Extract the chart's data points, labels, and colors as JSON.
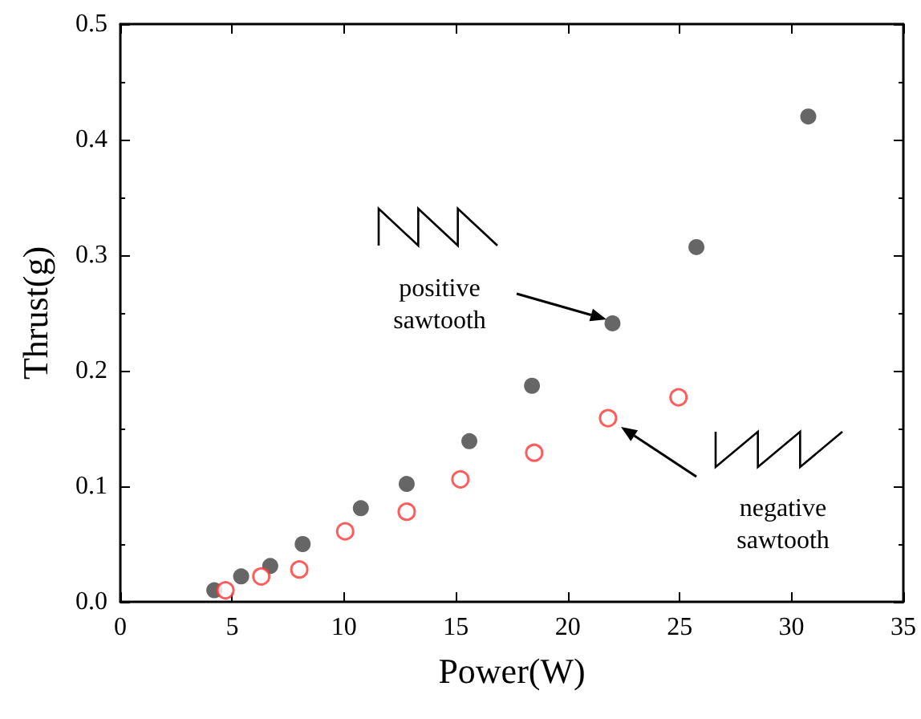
{
  "chart_data": {
    "type": "scatter",
    "xlabel": "Power(W)",
    "ylabel": "Thrust(g)",
    "xlim": [
      0,
      35
    ],
    "xticks": [
      0,
      5,
      10,
      15,
      20,
      25,
      30,
      35
    ],
    "ylim": [
      0,
      0.5
    ],
    "yticks": [
      {
        "value": 0,
        "label": "0.0"
      },
      {
        "value": 0.1,
        "label": "0.1"
      },
      {
        "value": 0.2,
        "label": "0.2"
      },
      {
        "value": 0.3,
        "label": "0.3"
      },
      {
        "value": 0.4,
        "label": "0.4"
      },
      {
        "value": 0.5,
        "label": "0.5"
      }
    ],
    "marker": "circle",
    "series": [
      {
        "color": "#404040",
        "x": [
          4.2,
          5.4,
          6.7,
          8.15,
          10.75,
          12.8,
          15.6,
          18.4,
          22.0,
          25.75,
          30.75
        ],
        "values": [
          0.01,
          0.022,
          0.031,
          0.05,
          0.081,
          0.102,
          0.139,
          0.187,
          0.241,
          0.307,
          0.42
        ]
      },
      {
        "color": "#ff3333",
        "x": [
          4.7,
          6.3,
          8.0,
          10.05,
          12.8,
          15.2,
          18.5,
          21.8,
          24.95
        ],
        "values": [
          0.01,
          0.022,
          0.028,
          0.061,
          0.078,
          0.106,
          0.129,
          0.159,
          0.177
        ]
      }
    ],
    "annotations": [
      "positive\nsawtooth",
      "negative\nsawtooth"
    ]
  }
}
